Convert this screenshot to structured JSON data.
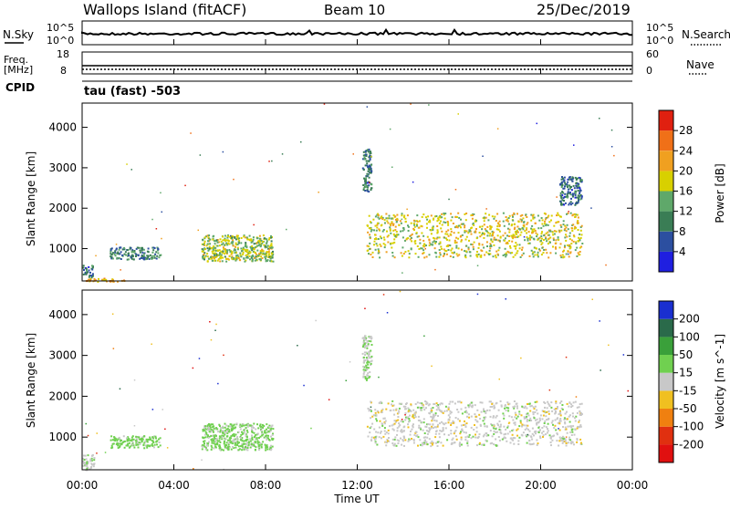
{
  "header": {
    "station": "Wallops Island (fitACF)",
    "beam": "Beam 10",
    "date": "25/Dec/2019"
  },
  "noise_panel": {
    "left_label": "N.Sky",
    "left_ticks": [
      "10^5",
      "10^0"
    ],
    "right_ticks": [
      "10^5",
      "10^0"
    ],
    "right_label": "N.Search"
  },
  "freq_panel": {
    "label_line1": "Freq.",
    "label_line2": "[MHz]",
    "left_ticks": [
      "18",
      "8"
    ],
    "right_ticks": [
      "60",
      "0"
    ],
    "right_label": "Nave"
  },
  "cpid": {
    "label": "CPID",
    "value": "tau (fast) -503"
  },
  "x_axis": {
    "tick_labels": [
      "00:00",
      "04:00",
      "08:00",
      "12:00",
      "16:00",
      "20:00",
      "00:00"
    ],
    "label": "Time UT"
  },
  "colors": {
    "power_scale": [
      "#1f1fe0",
      "#2c4fa0",
      "#3a7d55",
      "#5fa86a",
      "#d8d000",
      "#f0a020",
      "#f07018",
      "#e02010"
    ],
    "velocity_scale": [
      "#1a2fd0",
      "#2a6a4a",
      "#3aa03a",
      "#70d050",
      "#c8c8c8",
      "#f0c020",
      "#f08010",
      "#e03010",
      "#e01010"
    ]
  },
  "chart_data": [
    {
      "type": "heatmap",
      "title": "",
      "xlabel": "",
      "ylabel": "Slant Range [km]",
      "y_ticks": [
        "1000",
        "2000",
        "3000",
        "4000"
      ],
      "ylim": [
        200,
        4600
      ],
      "xlim": [
        0,
        24
      ],
      "colorbar": {
        "label": "Power [dB]",
        "ticks": [
          "4",
          "8",
          "12",
          "16",
          "20",
          "24",
          "28"
        ],
        "range": [
          0,
          32
        ]
      },
      "regions": [
        {
          "x": [
            0.0,
            0.5
          ],
          "y": [
            300,
            600
          ],
          "value": 8
        },
        {
          "x": [
            0.1,
            2.0
          ],
          "y": [
            200,
            280
          ],
          "value": 22
        },
        {
          "x": [
            1.2,
            3.4
          ],
          "y": [
            750,
            1050
          ],
          "value": 10
        },
        {
          "x": [
            5.2,
            8.3
          ],
          "y": [
            700,
            1350
          ],
          "value": 16
        },
        {
          "x": [
            12.4,
            21.8
          ],
          "y": [
            800,
            1900
          ],
          "value": 18
        },
        {
          "x": [
            12.2,
            12.6
          ],
          "y": [
            2400,
            3500
          ],
          "value": 8
        },
        {
          "x": [
            20.8,
            21.8
          ],
          "y": [
            2100,
            2800
          ],
          "value": 8
        }
      ]
    },
    {
      "type": "heatmap",
      "title": "",
      "xlabel": "Time UT",
      "ylabel": "Slant Range [km]",
      "y_ticks": [
        "1000",
        "2000",
        "3000",
        "4000"
      ],
      "ylim": [
        200,
        4600
      ],
      "xlim": [
        0,
        24
      ],
      "colorbar": {
        "label": "Velocity [m s^-1]",
        "ticks": [
          "200",
          "100",
          "50",
          "15",
          "-15",
          "-50",
          "-100",
          "-200"
        ],
        "range": [
          -250,
          250
        ]
      },
      "regions": [
        {
          "x": [
            0.0,
            0.5
          ],
          "y": [
            200,
            600
          ],
          "value": 5
        },
        {
          "x": [
            1.2,
            3.4
          ],
          "y": [
            750,
            1050
          ],
          "value": 30
        },
        {
          "x": [
            5.2,
            8.3
          ],
          "y": [
            700,
            1350
          ],
          "value": 25
        },
        {
          "x": [
            12.4,
            21.8
          ],
          "y": [
            800,
            1900
          ],
          "value": 0
        },
        {
          "x": [
            12.2,
            12.6
          ],
          "y": [
            2400,
            3500
          ],
          "value": 10
        }
      ]
    }
  ]
}
